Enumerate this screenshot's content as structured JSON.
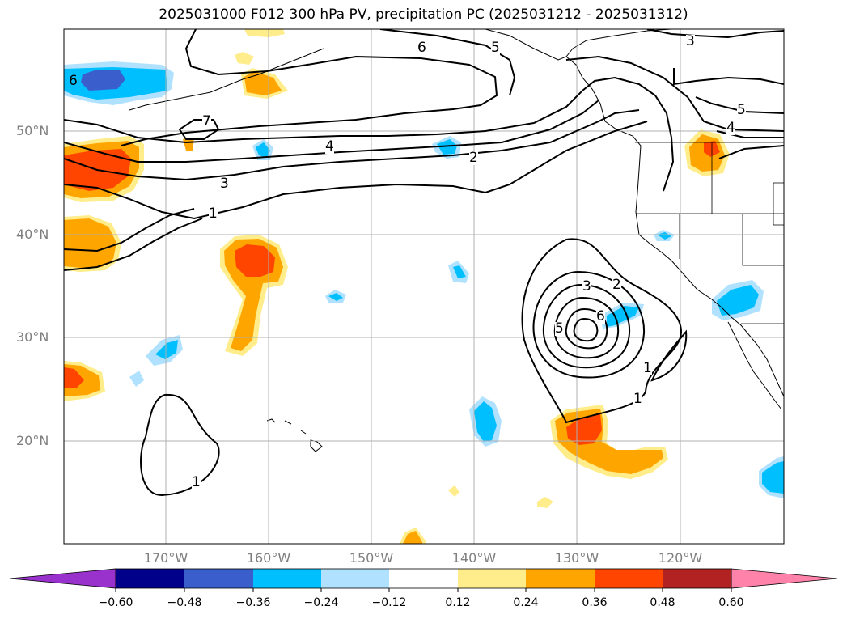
{
  "title": "2025031000 F012 300 hPa PV, precipitation PC (2025031212 - 2025031312)",
  "lat_labels": [
    "50°N",
    "40°N",
    "30°N",
    "20°N"
  ],
  "lon_labels": [
    "170°W",
    "160°W",
    "150°W",
    "140°W",
    "130°W",
    "120°W"
  ],
  "contour_labels": [
    "6",
    "5",
    "3",
    "5",
    "4",
    "7",
    "4",
    "2",
    "3",
    "1",
    "3",
    "2",
    "6",
    "5",
    "1",
    "1",
    "1",
    "6"
  ],
  "colorbar": {
    "ticks": [
      "−0.60",
      "−0.48",
      "−0.36",
      "−0.24",
      "−0.12",
      "0.12",
      "0.24",
      "0.36",
      "0.48",
      "0.60"
    ],
    "colors": [
      "#9932cc",
      "#00008b",
      "#3a5fcd",
      "#00bfff",
      "#b0e2ff",
      "#ffffff",
      "#ffec8b",
      "#ffa500",
      "#ff4500",
      "#b22222",
      "#ff82ab"
    ]
  },
  "colors": {
    "grid": "#b0b0b0",
    "axis_label": "#7f7f7f",
    "contour": "#000000"
  }
}
